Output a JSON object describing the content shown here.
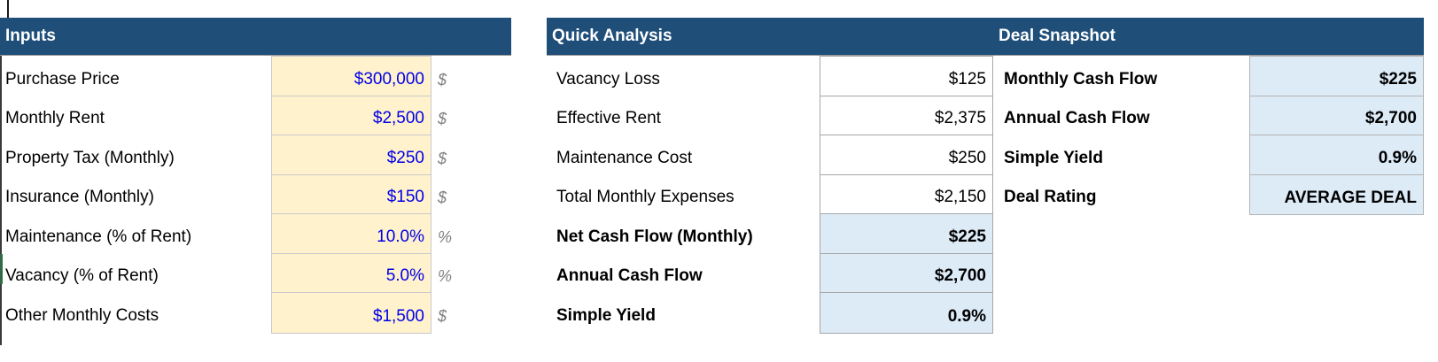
{
  "colors": {
    "header-blue": "#1F4E79",
    "input-fill": "#FFF2CC",
    "highlight-fill": "#DDEBF7",
    "input-text": "#0000E8",
    "unit-gray": "#7F7F7F"
  },
  "inputs": {
    "title": "Inputs",
    "rows": [
      {
        "label": "Purchase Price",
        "value": "$300,000",
        "unit": "$"
      },
      {
        "label": "Monthly Rent",
        "value": "$2,500",
        "unit": "$"
      },
      {
        "label": "Property Tax (Monthly)",
        "value": "$250",
        "unit": "$"
      },
      {
        "label": "Insurance (Monthly)",
        "value": "$150",
        "unit": "$"
      },
      {
        "label": "Maintenance (% of Rent)",
        "value": "10.0%",
        "unit": "%"
      },
      {
        "label": "Vacancy (% of Rent)",
        "value": "5.0%",
        "unit": "%"
      },
      {
        "label": "Other Monthly Costs",
        "value": "$1,500",
        "unit": "$"
      }
    ]
  },
  "quick_analysis": {
    "title": "Quick Analysis",
    "rows": [
      {
        "label": "Vacancy Loss",
        "value": "$125"
      },
      {
        "label": "Effective Rent",
        "value": "$2,375"
      },
      {
        "label": "Maintenance Cost",
        "value": "$250"
      },
      {
        "label": "Total Monthly Expenses",
        "value": "$2,150"
      },
      {
        "label": "Net Cash Flow (Monthly)",
        "value": "$225"
      },
      {
        "label": "Annual Cash Flow",
        "value": "$2,700"
      },
      {
        "label": "Simple Yield",
        "value": "0.9%"
      }
    ]
  },
  "deal_snapshot": {
    "title": "Deal Snapshot",
    "rows": [
      {
        "label": "Monthly Cash Flow",
        "value": "$225"
      },
      {
        "label": "Annual Cash Flow",
        "value": "$2,700"
      },
      {
        "label": "Simple Yield",
        "value": "0.9%"
      },
      {
        "label": "Deal Rating",
        "value": "AVERAGE DEAL"
      }
    ]
  }
}
